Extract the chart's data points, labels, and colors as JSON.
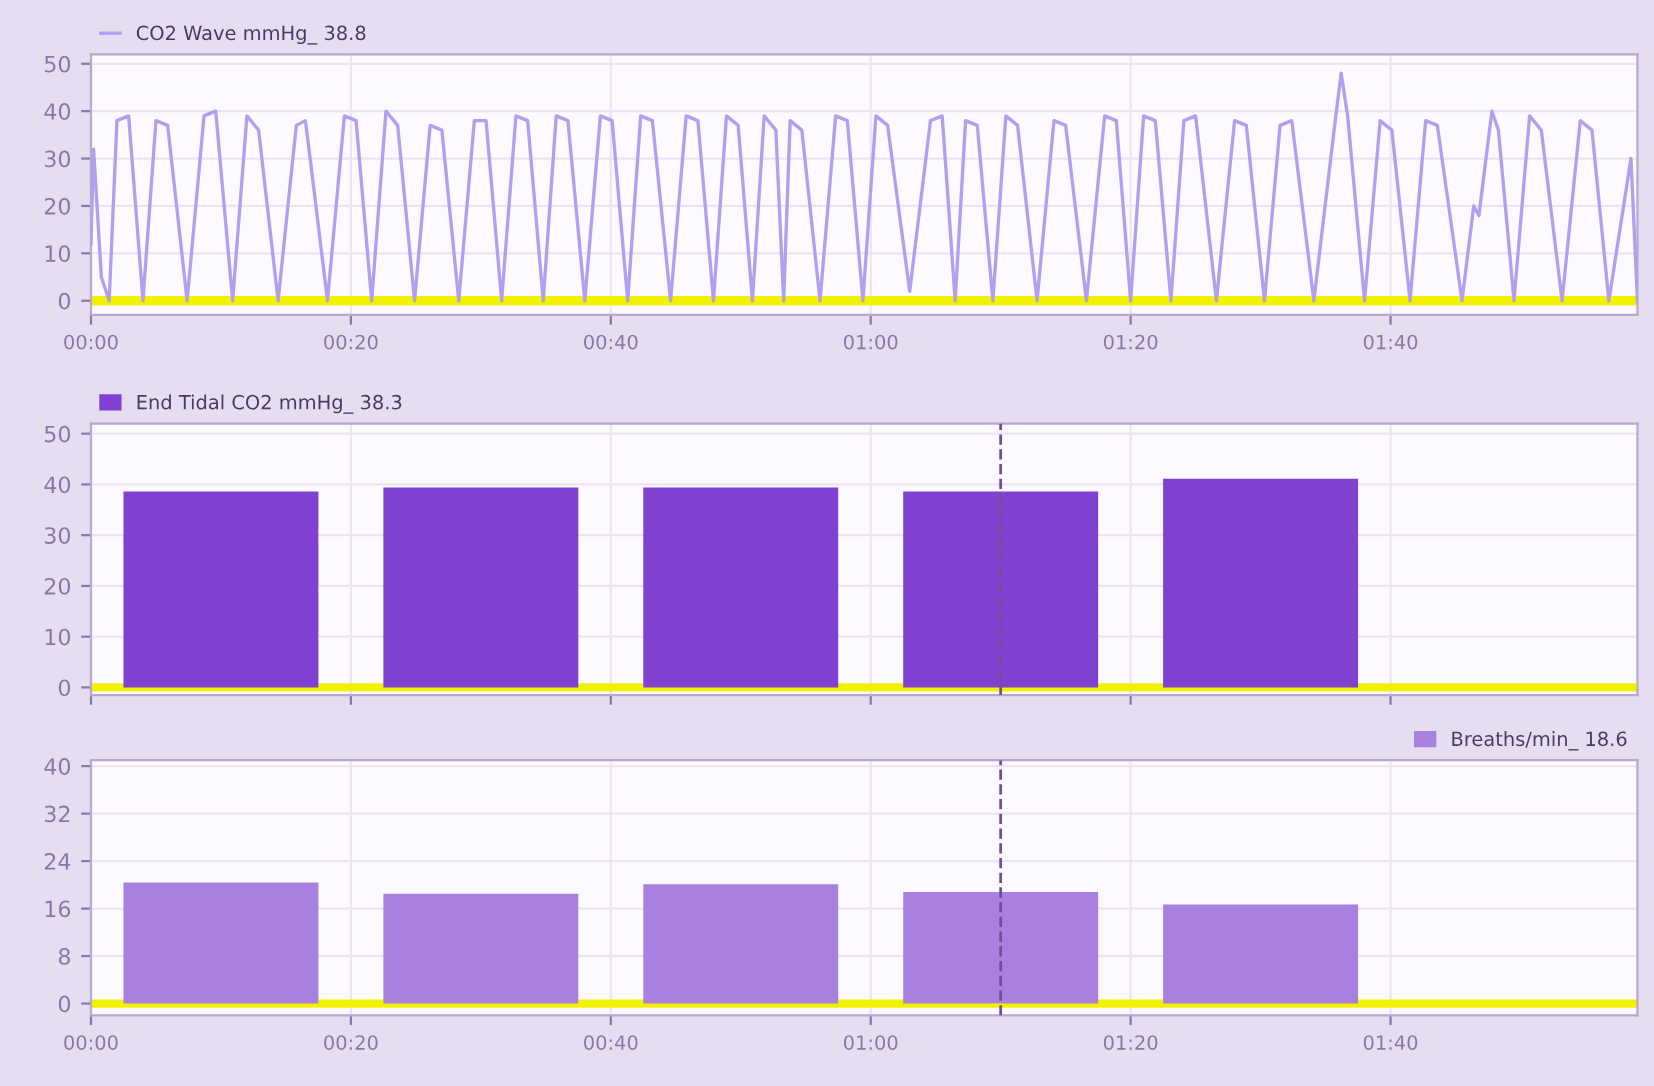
{
  "chart_data": [
    {
      "type": "line",
      "legend": "top left",
      "grid": true,
      "line_style": "solid",
      "tick_labels": "xy",
      "xlim": [
        0,
        119
      ],
      "ylim": [
        -3,
        52
      ],
      "xticks": [
        {
          "value": 0,
          "label": "00:00"
        },
        {
          "value": 20,
          "label": "00:20"
        },
        {
          "value": 40,
          "label": "00:40"
        },
        {
          "value": 60,
          "label": "01:00"
        },
        {
          "value": 80,
          "label": "01:20"
        },
        {
          "value": 100,
          "label": "01:40"
        }
      ],
      "yticks": [
        0,
        10,
        20,
        30,
        40,
        50
      ],
      "bands": [
        {
          "axis": "y",
          "from": -1,
          "to": 1,
          "color": "#f2f200"
        }
      ],
      "series": [
        {
          "name": "CO2 Wave mmHg_ 38.8",
          "color": "#b0a0ee",
          "x": [
            0,
            0.2,
            0.8,
            1.4,
            2.0,
            2.9,
            4.0,
            5.0,
            5.9,
            7.4,
            8.7,
            9.6,
            10.9,
            12.0,
            12.9,
            14.4,
            15.8,
            16.5,
            17.0,
            18.2,
            19.5,
            20.4,
            21.6,
            22.7,
            23.6,
            24.9,
            26.1,
            27.0,
            28.3,
            29.5,
            30.4,
            31.6,
            32.7,
            33.6,
            34.8,
            35.8,
            36.7,
            38.0,
            39.2,
            40.1,
            41.3,
            42.3,
            43.2,
            44.6,
            45.8,
            46.7,
            47.9,
            48.9,
            49.8,
            50.9,
            51.8,
            52.7,
            53.3,
            53.8,
            54.7,
            56.1,
            57.3,
            58.2,
            59.4,
            60.4,
            61.3,
            63.0,
            64.6,
            65.5,
            66.5,
            67.3,
            68.2,
            69.4,
            70.4,
            71.3,
            72.8,
            74.1,
            75.0,
            76.6,
            78.0,
            78.9,
            80.0,
            81.0,
            81.9,
            83.1,
            84.1,
            85.0,
            86.6,
            88.0,
            88.9,
            90.3,
            91.5,
            92.4,
            94.1,
            95.7,
            96.2,
            96.7,
            98.0,
            99.2,
            100.1,
            101.5,
            102.7,
            103.6,
            105.5,
            106.4,
            106.8,
            107.8,
            108.3,
            109.5,
            110.7,
            111.6,
            113.2,
            114.6,
            115.5,
            116.8,
            118.5,
            119
          ],
          "values": [
            12,
            32,
            5,
            0,
            38,
            39,
            0,
            38,
            37,
            0,
            39,
            40,
            0,
            39,
            36,
            0,
            37,
            38,
            27,
            0,
            39,
            38,
            0,
            40,
            37,
            0,
            37,
            36,
            0,
            38,
            38,
            0,
            39,
            38,
            0,
            39,
            38,
            0,
            39,
            38,
            0,
            39,
            38,
            0,
            39,
            38,
            0,
            39,
            37,
            0,
            39,
            36,
            0,
            38,
            36,
            0,
            39,
            38,
            0,
            39,
            37,
            2,
            38,
            39,
            0,
            38,
            37,
            0,
            39,
            37,
            0,
            38,
            37,
            0,
            39,
            38,
            0,
            39,
            38,
            0,
            38,
            39,
            0,
            38,
            37,
            0,
            37,
            38,
            0,
            37,
            48,
            39,
            0,
            38,
            36,
            0,
            38,
            37,
            0,
            20,
            18,
            40,
            36,
            0,
            39,
            36,
            0,
            38,
            36,
            0,
            30,
            0
          ]
        }
      ]
    },
    {
      "type": "bar",
      "legend": "top left",
      "grid": true,
      "tick_labels": "y",
      "xlim": [
        0,
        119
      ],
      "ylim": [
        -1.5,
        52
      ],
      "xticks": [
        {
          "value": 0,
          "label": null
        },
        {
          "value": 20,
          "label": null
        },
        {
          "value": 40,
          "label": null
        },
        {
          "value": 60,
          "label": null
        },
        {
          "value": 80,
          "label": null
        },
        {
          "value": 100,
          "label": null
        }
      ],
      "yticks": [
        0,
        10,
        20,
        30,
        40,
        50
      ],
      "bands": [
        {
          "axis": "y",
          "from": -0.8,
          "to": 0.8,
          "color": "#f2f200"
        }
      ],
      "ref_lines": [
        {
          "axis": "x",
          "value": 70,
          "color": "#705090",
          "line_style": "dashed"
        }
      ],
      "x": [
        10,
        30,
        50,
        70,
        90
      ],
      "series": [
        {
          "name": "End Tidal CO2 mmHg_ 38.3",
          "color": "#8040d0",
          "values": [
            38.6,
            39.4,
            39.4,
            38.6,
            41.1
          ]
        }
      ]
    },
    {
      "type": "bar",
      "legend": "top right",
      "grid": true,
      "tick_labels": "xy",
      "xlim": [
        0,
        119
      ],
      "ylim": [
        -2,
        41
      ],
      "xticks": [
        {
          "value": 0,
          "label": "00:00"
        },
        {
          "value": 20,
          "label": "00:20"
        },
        {
          "value": 40,
          "label": "00:40"
        },
        {
          "value": 60,
          "label": "01:00"
        },
        {
          "value": 80,
          "label": "01:20"
        },
        {
          "value": 100,
          "label": "01:40"
        }
      ],
      "yticks": [
        0,
        8,
        16,
        24,
        32,
        40
      ],
      "bands": [
        {
          "axis": "y",
          "from": -0.7,
          "to": 0.7,
          "color": "#f2f200"
        }
      ],
      "ref_lines": [
        {
          "axis": "x",
          "value": 70,
          "color": "#705090",
          "line_style": "dashed"
        }
      ],
      "x": [
        10,
        30,
        50,
        70,
        90
      ],
      "series": [
        {
          "name": "Breaths/min_ 18.6",
          "color": "#a880e0",
          "values": [
            20.4,
            18.5,
            20.1,
            18.8,
            16.7
          ]
        }
      ]
    }
  ]
}
